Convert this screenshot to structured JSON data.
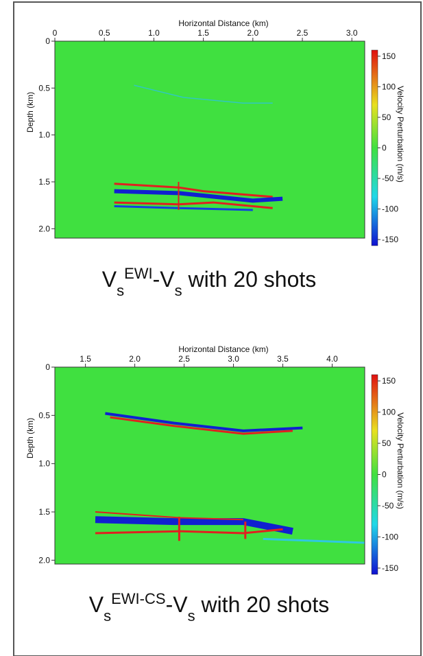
{
  "chart_data": [
    {
      "type": "heatmap",
      "xlabel": "Horizontal Distance (km)",
      "ylabel": "Depth (km)",
      "xlim": [
        0,
        3.13
      ],
      "xticks": [
        0,
        0.5,
        {
          "value": 1,
          "label": "1.0"
        },
        1.5,
        {
          "value": 2,
          "label": "2.0"
        },
        2.5,
        {
          "value": 3,
          "label": "3.0"
        }
      ],
      "ylim": [
        0,
        2.1
      ],
      "yticks": [
        0,
        0.5,
        {
          "value": 1,
          "label": "1.0"
        },
        1.5,
        {
          "value": 2,
          "label": "2.0"
        }
      ],
      "colorbar": {
        "label": "Velocity Perturbation (m/s)",
        "lim": [
          -160,
          160
        ],
        "ticks": [
          150,
          100,
          50,
          0,
          -50,
          -100,
          -150
        ]
      },
      "caption": [
        {
          "text": "V"
        },
        {
          "text": "s",
          "shift": "sub"
        },
        {
          "text": "EWI",
          "shift": "super"
        },
        {
          "text": "-V"
        },
        {
          "text": "s",
          "shift": "sub"
        },
        {
          "text": " with 20 shots"
        }
      ]
    },
    {
      "type": "heatmap",
      "xlabel": "Horizontal Distance (km)",
      "ylabel": "Depth (km)",
      "xlim": [
        1.19,
        4.33
      ],
      "xticks": [
        1.5,
        {
          "value": 2,
          "label": "2.0"
        },
        2.5,
        {
          "value": 3,
          "label": "3.0"
        },
        3.5,
        {
          "value": 4,
          "label": "4.0"
        }
      ],
      "ylim": [
        0,
        2.04
      ],
      "yticks": [
        0,
        0.5,
        {
          "value": 1,
          "label": "1.0"
        },
        1.5,
        {
          "value": 2,
          "label": "2.0"
        }
      ],
      "colorbar": {
        "label": "Velocity Perturbation (m/s)",
        "lim": [
          -160,
          160
        ],
        "ticks": [
          150,
          100,
          50,
          0,
          -50,
          -100,
          -150
        ]
      },
      "caption": [
        {
          "text": "V"
        },
        {
          "text": "s",
          "shift": "sub"
        },
        {
          "text": "EWI-CS",
          "shift": "super"
        },
        {
          "text": "-V"
        },
        {
          "text": "s",
          "shift": "sub"
        },
        {
          "text": " with 20 shots"
        }
      ]
    }
  ]
}
